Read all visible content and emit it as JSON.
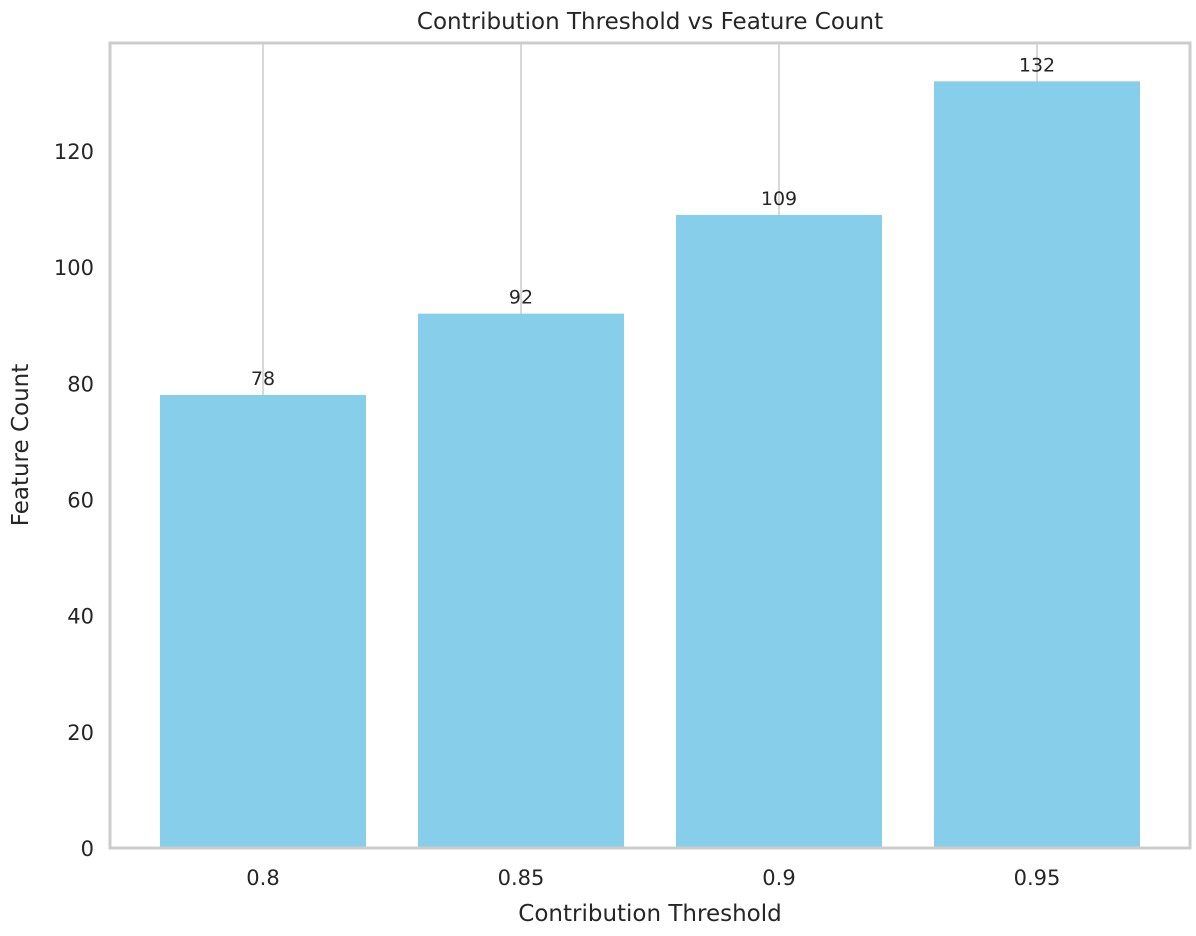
{
  "chart_data": {
    "type": "bar",
    "title": "Contribution Threshold vs Feature Count",
    "xlabel": "Contribution Threshold",
    "ylabel": "Feature Count",
    "categories": [
      "0.8",
      "0.85",
      "0.9",
      "0.95"
    ],
    "values": [
      78,
      92,
      109,
      132
    ],
    "data_labels": [
      "78",
      "92",
      "109",
      "132"
    ],
    "y_ticks": [
      0,
      20,
      40,
      60,
      80,
      100,
      120
    ],
    "ylim": [
      0,
      138.6
    ],
    "grid": "vertical",
    "legend": "none",
    "colors": {
      "bar": "#87ceeb",
      "grid": "#cccccc",
      "frame": "#cccccc",
      "text": "#262626"
    }
  }
}
